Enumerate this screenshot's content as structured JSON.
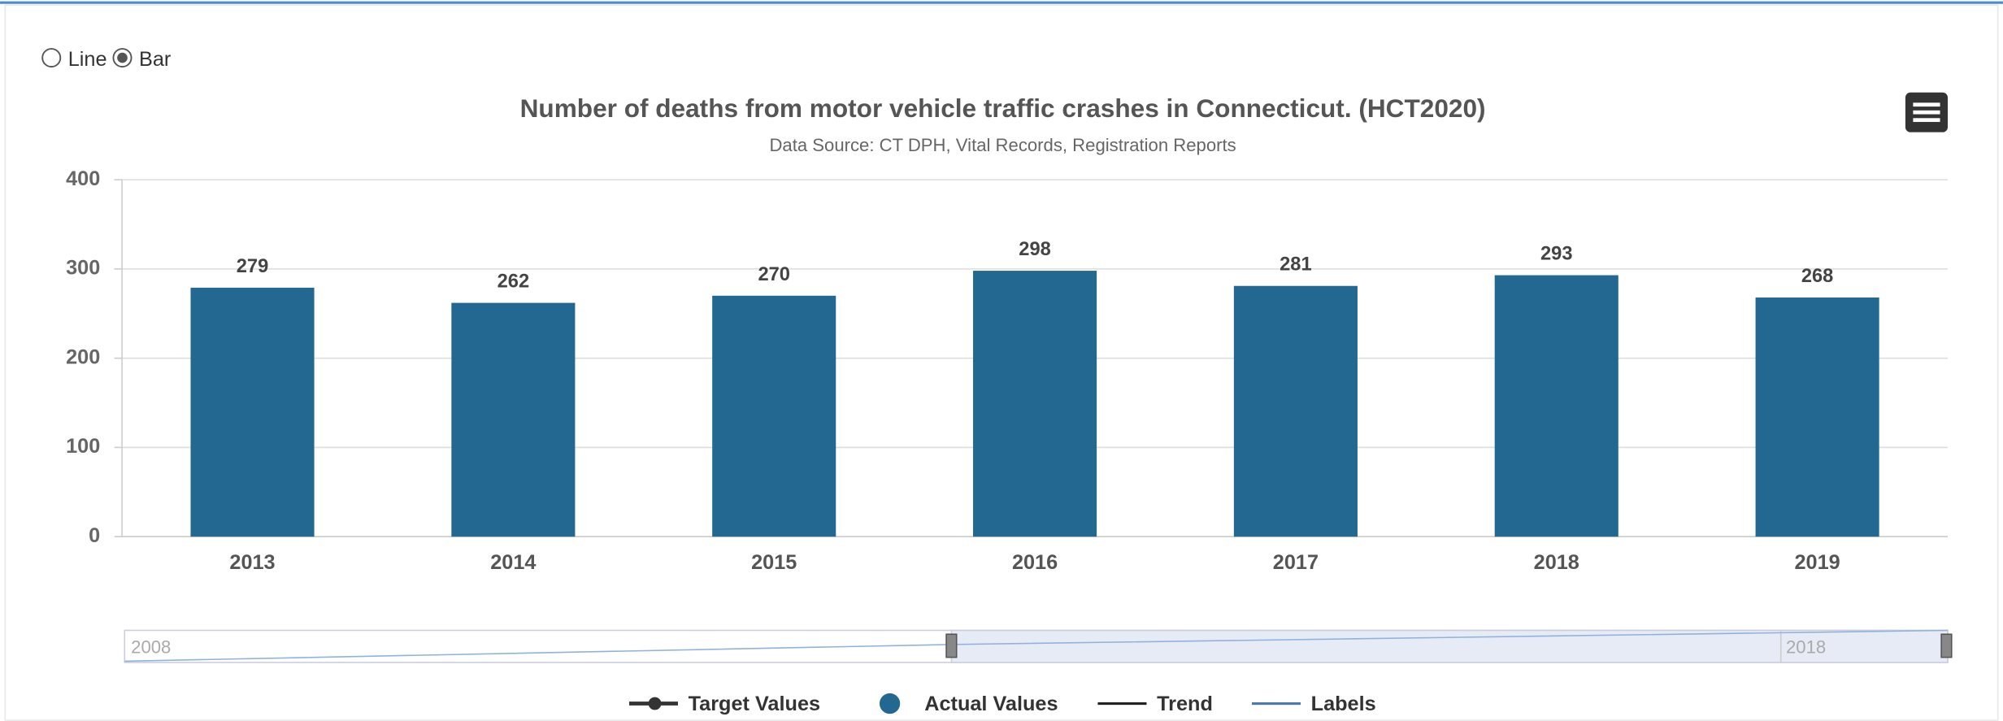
{
  "chart_data": {
    "type": "bar",
    "title": "Number of deaths from motor vehicle traffic crashes in Connecticut. (HCT2020)",
    "subtitle": "Data Source: CT DPH, Vital Records, Registration Reports",
    "chart_type_options": [
      "Line",
      "Bar"
    ],
    "categories": [
      "2013",
      "2014",
      "2015",
      "2016",
      "2017",
      "2018",
      "2019"
    ],
    "values": [
      279,
      262,
      270,
      298,
      281,
      293,
      268
    ],
    "color": "#236890",
    "ylim": [
      0,
      400
    ],
    "yticks": [
      0,
      100,
      200,
      300,
      400
    ],
    "grid": true,
    "navigator_labels": [
      "2008",
      "2018"
    ],
    "legend": [
      {
        "name": "Target Values",
        "color": "#333333",
        "symbol": "line-dot"
      },
      {
        "name": "Actual Values",
        "color": "#236890",
        "symbol": "dot"
      },
      {
        "name": "Trend",
        "color": "#222222",
        "symbol": "line"
      },
      {
        "name": "Labels",
        "color": "#4a7ab0",
        "symbol": "line"
      }
    ]
  }
}
